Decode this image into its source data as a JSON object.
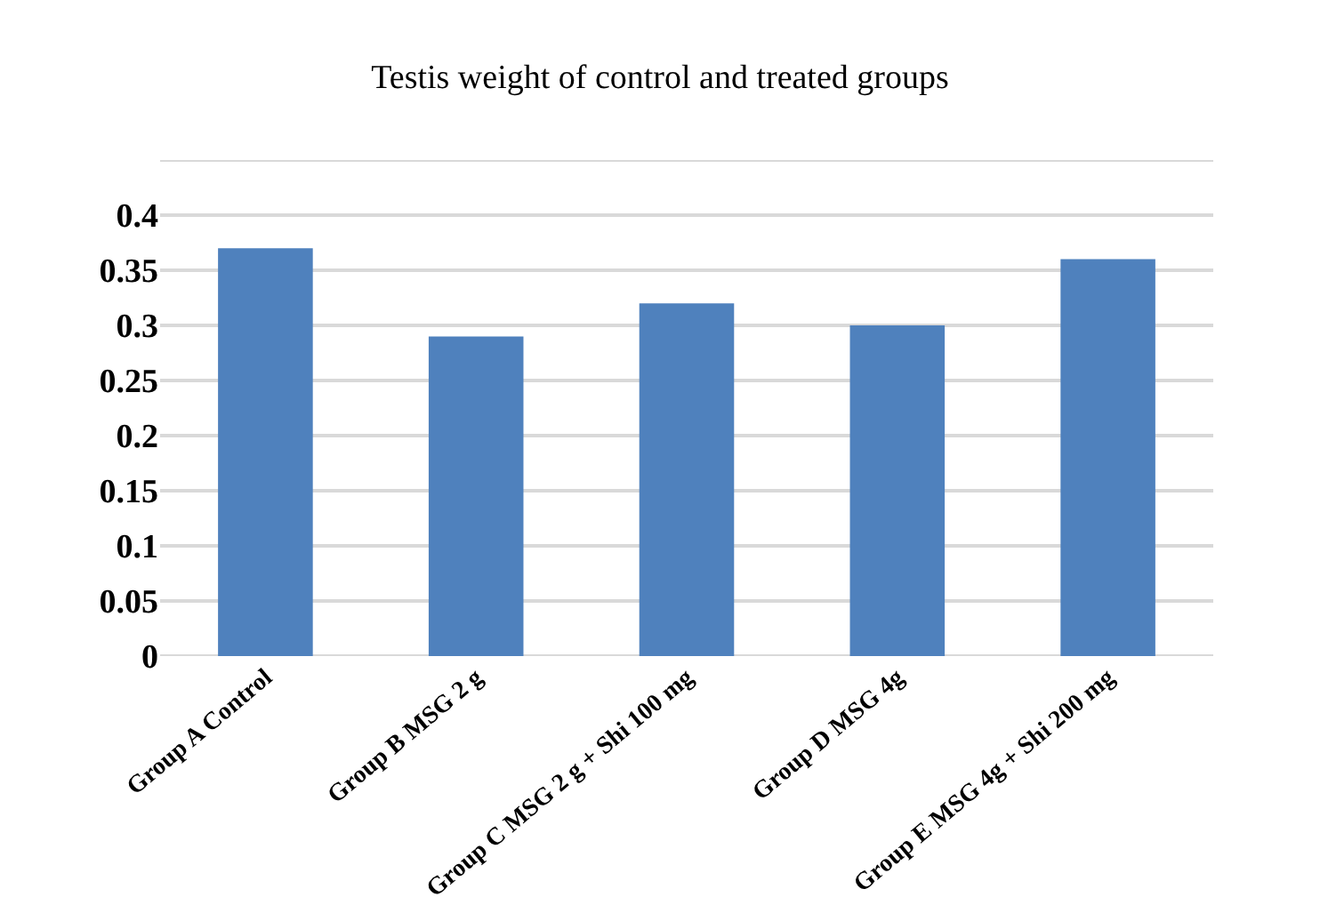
{
  "chart_data": {
    "type": "bar",
    "title": "Testis weight of control and treated groups",
    "categories": [
      "Group A Control",
      "Group B MSG 2 g",
      "Group C MSG 2 g + Shi 100 mg",
      "Group D MSG 4g",
      "Group E MSG 4g + Shi 200 mg"
    ],
    "values": [
      0.37,
      0.29,
      0.32,
      0.3,
      0.36
    ],
    "color": "#4f81bd",
    "ylim": [
      0,
      0.45
    ],
    "yticks": [
      0,
      0.05,
      0.1,
      0.15,
      0.2,
      0.25,
      0.3,
      0.35,
      0.4,
      {
        "value": 0.45,
        "label": null
      }
    ],
    "grid": "y"
  }
}
